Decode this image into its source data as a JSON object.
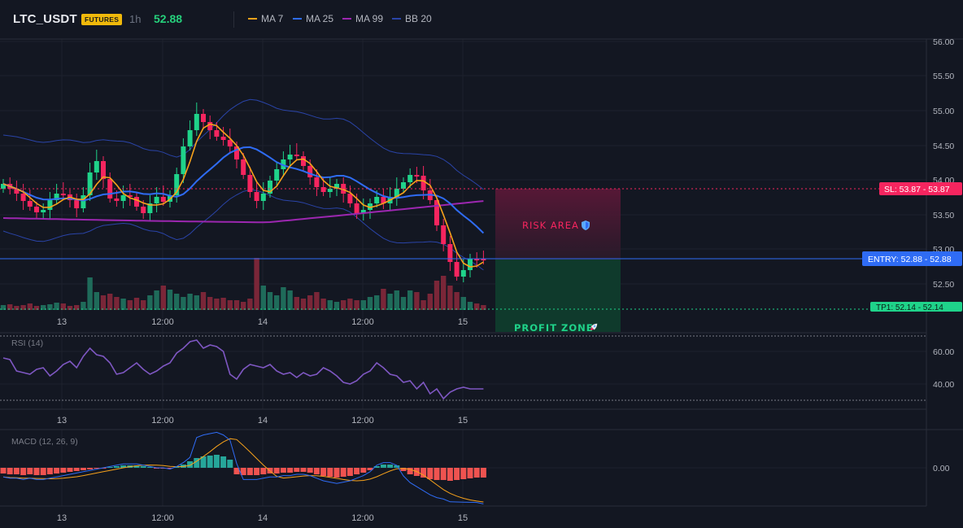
{
  "header": {
    "symbol": "LTC_USDT",
    "badge": "FUTURES",
    "timeframe": "1h",
    "last_price": "52.88",
    "legend": [
      {
        "label": "MA 7",
        "color": "#f7a21b"
      },
      {
        "label": "MA 25",
        "color": "#2f6cf5"
      },
      {
        "label": "MA 99",
        "color": "#9c27b0"
      },
      {
        "label": "BB 20",
        "color": "#2a44a8"
      }
    ]
  },
  "colors": {
    "up": "#1fd38a",
    "down": "#f6255f",
    "background": "#131722"
  },
  "price_axis": {
    "ticks": [
      "56.00",
      "55.50",
      "55.00",
      "54.50",
      "54.00",
      "53.50",
      "53.00",
      "52.50"
    ]
  },
  "time_axis": {
    "labels": [
      "13",
      "12:00",
      "14",
      "12:00",
      "15"
    ]
  },
  "trade": {
    "sl_label": "SL: 53.87 - 53.87",
    "entry_label": "ENTRY: 52.88 - 52.88",
    "tp_label": "TP1: 52.14 - 52.14",
    "risk_label": "RISK AREA",
    "risk_icon": "shield-icon",
    "profit_label": "PROFIT ZONE",
    "profit_icon": "rocket-icon"
  },
  "rsi": {
    "label": "RSI (14)",
    "ticks": [
      "60.00",
      "40.00"
    ]
  },
  "macd": {
    "label": "MACD (12, 26, 9)",
    "ticks": [
      "0.00"
    ]
  },
  "chart_data": {
    "type": "candlestick",
    "x": [
      "13",
      "12:00",
      "14",
      "12:00",
      "15"
    ],
    "ylim": [
      52.14,
      56.0
    ],
    "sl": 53.87,
    "entry": 52.88,
    "tp1": 52.14
  }
}
